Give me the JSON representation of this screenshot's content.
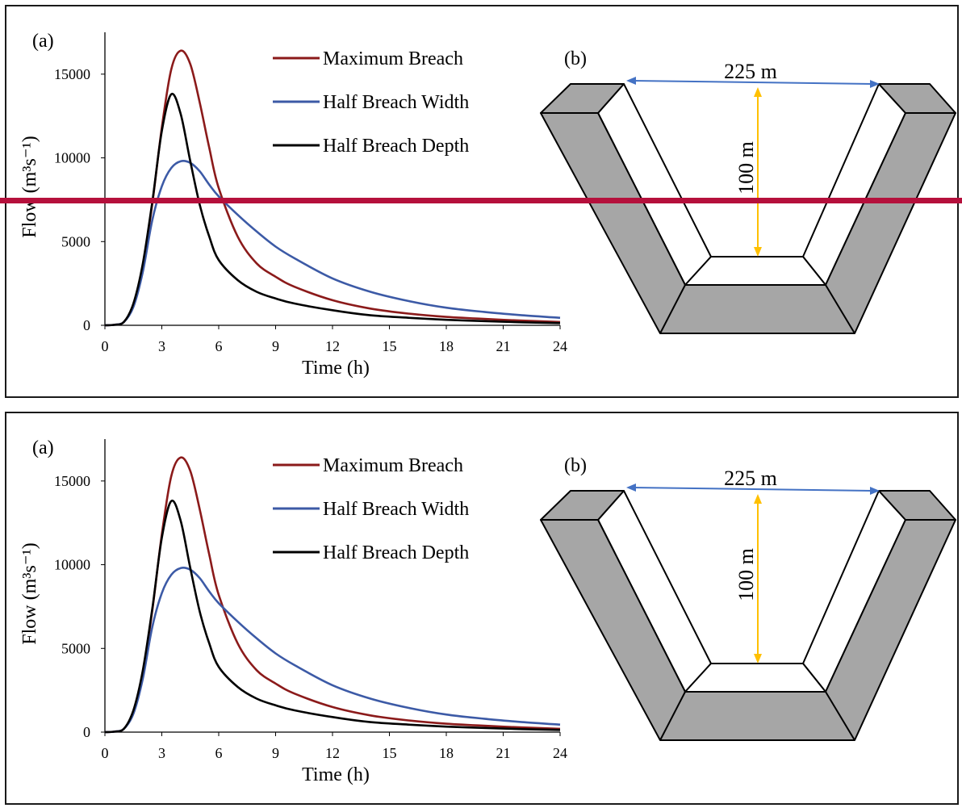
{
  "panels": [
    {
      "label_a": "(a)",
      "label_b": "(b)",
      "diagram": {
        "width_label": "225 m",
        "depth_label": "100 m"
      }
    },
    {
      "label_a": "(a)",
      "label_b": "(b)",
      "diagram": {
        "width_label": "225 m",
        "depth_label": "100 m"
      }
    }
  ],
  "colors": {
    "max_breach": "#8b1a1a",
    "half_width": "#3c5aa6",
    "half_depth": "#000000",
    "dimension_width_arrow": "#4472c4",
    "dimension_depth_arrow": "#ffc000",
    "dam_fill": "#a6a6a6",
    "overlay_line": "#b5103c"
  },
  "chart_data": [
    {
      "type": "line",
      "xlabel": "Time (h)",
      "ylabel": "Flow (m³s⁻¹)",
      "xlim": [
        0,
        24
      ],
      "ylim": [
        0,
        17500
      ],
      "x_ticks": [
        "0",
        "3",
        "6",
        "9",
        "12",
        "15",
        "18",
        "21",
        "24"
      ],
      "y_ticks": [
        "0",
        "5000",
        "10000",
        "15000"
      ],
      "legend_position": "top-center",
      "x": [
        0,
        0.5,
        1,
        1.5,
        2,
        2.5,
        3,
        3.5,
        4,
        4.5,
        5,
        5.5,
        6,
        7,
        8,
        9,
        10,
        12,
        14,
        16,
        18,
        20,
        22,
        24
      ],
      "series": [
        {
          "name": "Maximum Breach",
          "color_key": "max_breach",
          "values": [
            0,
            30,
            200,
            1200,
            3500,
            7300,
            11800,
            15300,
            16400,
            15600,
            13300,
            10600,
            8200,
            5300,
            3700,
            2900,
            2300,
            1500,
            1000,
            700,
            500,
            380,
            280,
            200
          ]
        },
        {
          "name": "Half Breach Width",
          "color_key": "half_width",
          "values": [
            0,
            30,
            200,
            1100,
            3200,
            6300,
            8300,
            9400,
            9800,
            9700,
            9200,
            8400,
            7700,
            6600,
            5600,
            4700,
            4000,
            2800,
            2000,
            1450,
            1050,
            800,
            600,
            450
          ]
        },
        {
          "name": "Half Breach Depth",
          "color_key": "half_depth",
          "values": [
            0,
            30,
            200,
            1300,
            3700,
            7400,
            11600,
            13800,
            12600,
            9800,
            7200,
            5300,
            3900,
            2700,
            2000,
            1600,
            1300,
            900,
            600,
            450,
            330,
            250,
            180,
            130
          ]
        }
      ]
    },
    {
      "type": "line",
      "xlabel": "Time (h)",
      "ylabel": "Flow (m³s⁻¹)",
      "xlim": [
        0,
        24
      ],
      "ylim": [
        0,
        17500
      ],
      "x_ticks": [
        "0",
        "3",
        "6",
        "9",
        "12",
        "15",
        "18",
        "21",
        "24"
      ],
      "y_ticks": [
        "0",
        "5000",
        "10000",
        "15000"
      ],
      "legend_position": "top-center",
      "x": [
        0,
        0.5,
        1,
        1.5,
        2,
        2.5,
        3,
        3.5,
        4,
        4.5,
        5,
        5.5,
        6,
        7,
        8,
        9,
        10,
        12,
        14,
        16,
        18,
        20,
        22,
        24
      ],
      "series": [
        {
          "name": "Maximum Breach",
          "color_key": "max_breach",
          "values": [
            0,
            30,
            200,
            1200,
            3500,
            7300,
            11800,
            15300,
            16400,
            15600,
            13300,
            10600,
            8200,
            5300,
            3700,
            2900,
            2300,
            1500,
            1000,
            700,
            500,
            380,
            280,
            200
          ]
        },
        {
          "name": "Half Breach Width",
          "color_key": "half_width",
          "values": [
            0,
            30,
            200,
            1100,
            3200,
            6300,
            8300,
            9400,
            9800,
            9700,
            9200,
            8400,
            7700,
            6600,
            5600,
            4700,
            4000,
            2800,
            2000,
            1450,
            1050,
            800,
            600,
            450
          ]
        },
        {
          "name": "Half Breach Depth",
          "color_key": "half_depth",
          "values": [
            0,
            30,
            200,
            1300,
            3700,
            7400,
            11600,
            13800,
            12600,
            9800,
            7200,
            5300,
            3900,
            2700,
            2000,
            1600,
            1300,
            900,
            600,
            450,
            330,
            250,
            180,
            130
          ]
        }
      ]
    }
  ]
}
